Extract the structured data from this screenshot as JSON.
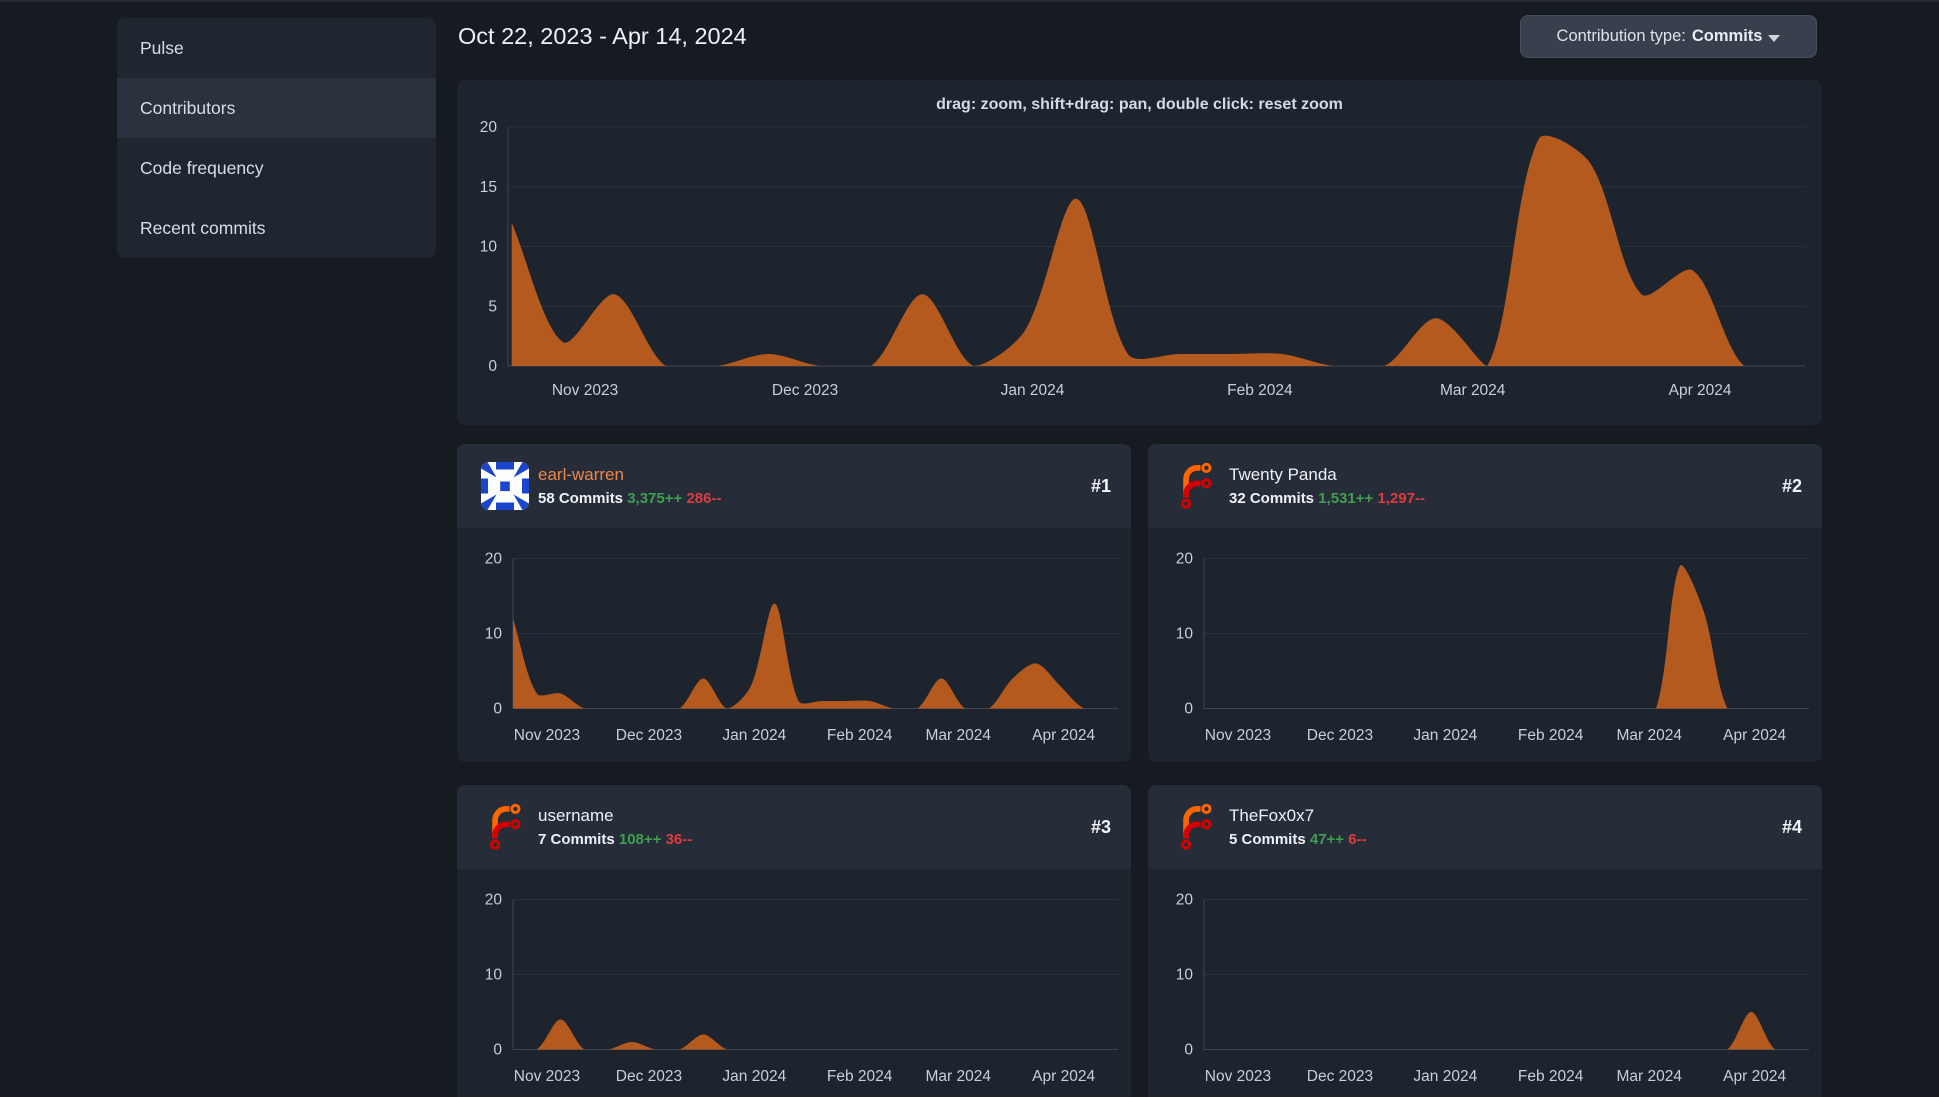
{
  "page": {
    "heading": "Oct 22, 2023 - Apr 14, 2024",
    "contribution_type": {
      "label": "Contribution type:",
      "value": "Commits"
    }
  },
  "sidebar": {
    "items": [
      {
        "label": "Pulse",
        "active": false
      },
      {
        "label": "Contributors",
        "active": true
      },
      {
        "label": "Code frequency",
        "active": false
      },
      {
        "label": "Recent commits",
        "active": false
      }
    ]
  },
  "contributors": [
    {
      "rank": "#1",
      "name": "earl-warren",
      "name_is_link": true,
      "avatar": "identicon-blue",
      "commits_label": "58 Commits",
      "additions": "3,375++",
      "deletions": "286--"
    },
    {
      "rank": "#2",
      "name": "Twenty Panda",
      "name_is_link": false,
      "avatar": "forgejo-logo",
      "commits_label": "32 Commits",
      "additions": "1,531++",
      "deletions": "1,297--"
    },
    {
      "rank": "#3",
      "name": "username",
      "name_is_link": false,
      "avatar": "forgejo-logo",
      "commits_label": "7 Commits",
      "additions": "108++",
      "deletions": "36--"
    },
    {
      "rank": "#4",
      "name": "TheFox0x7",
      "name_is_link": false,
      "avatar": "forgejo-logo",
      "commits_label": "5 Commits",
      "additions": "47++",
      "deletions": "6--"
    }
  ],
  "chart_data": {
    "type": "area",
    "unit": "commits per week",
    "interpolation": "cardinal-spline tension 0.3",
    "grid": "horizontal only",
    "legend_position": "none",
    "weeks": [
      "2023-10-22",
      "2023-10-29",
      "2023-11-05",
      "2023-11-12",
      "2023-11-19",
      "2023-11-26",
      "2023-12-03",
      "2023-12-10",
      "2023-12-17",
      "2023-12-24",
      "2023-12-31",
      "2024-01-07",
      "2024-01-14",
      "2024-01-21",
      "2024-01-28",
      "2024-02-04",
      "2024-02-11",
      "2024-02-18",
      "2024-02-25",
      "2024-03-03",
      "2024-03-10",
      "2024-03-17",
      "2024-03-24",
      "2024-03-31",
      "2024-04-07",
      "2024-04-14"
    ],
    "x_tick_labels": [
      "Nov 2023",
      "Dec 2023",
      "Jan 2024",
      "Feb 2024",
      "Mar 2024",
      "Apr 2024"
    ],
    "x_tick_days_from_start": [
      10,
      40,
      71,
      102,
      131,
      162
    ],
    "x_domain_days_main": [
      -0.5,
      176.3
    ],
    "x_domain_days_cards": [
      0,
      178
    ],
    "main": {
      "title": "drag: zoom, shift+drag: pan, double click: reset zoom",
      "ylim": [
        0,
        20
      ],
      "y_ticks": [
        0,
        5,
        10,
        15,
        20
      ],
      "values": [
        12,
        2,
        6,
        0,
        0,
        1,
        0,
        0,
        6,
        0,
        3,
        14,
        1,
        1,
        1,
        1,
        0,
        0,
        4,
        0,
        19,
        17,
        6,
        8,
        0,
        0
      ]
    },
    "series": [
      {
        "name": "earl-warren",
        "ylim": [
          0,
          20
        ],
        "y_ticks": [
          0,
          10,
          20
        ],
        "values": [
          12,
          2,
          2,
          0,
          0,
          0,
          0,
          0,
          4,
          0,
          3,
          14,
          1,
          1,
          1,
          1,
          0,
          0,
          4,
          0,
          0,
          4,
          6,
          3,
          0,
          0
        ]
      },
      {
        "name": "Twenty Panda",
        "ylim": [
          0,
          20
        ],
        "y_ticks": [
          0,
          10,
          20
        ],
        "values": [
          0,
          0,
          0,
          0,
          0,
          0,
          0,
          0,
          0,
          0,
          0,
          0,
          0,
          0,
          0,
          0,
          0,
          0,
          0,
          0,
          19,
          13,
          0,
          0,
          0,
          0
        ]
      },
      {
        "name": "username",
        "ylim": [
          0,
          20
        ],
        "y_ticks": [
          0,
          10,
          20
        ],
        "values": [
          0,
          0,
          4,
          0,
          0,
          1,
          0,
          0,
          2,
          0,
          0,
          0,
          0,
          0,
          0,
          0,
          0,
          0,
          0,
          0,
          0,
          0,
          0,
          0,
          0,
          0
        ]
      },
      {
        "name": "TheFox0x7",
        "ylim": [
          0,
          20
        ],
        "y_ticks": [
          0,
          10,
          20
        ],
        "values": [
          0,
          0,
          0,
          0,
          0,
          0,
          0,
          0,
          0,
          0,
          0,
          0,
          0,
          0,
          0,
          0,
          0,
          0,
          0,
          0,
          0,
          0,
          0,
          5,
          0,
          0
        ]
      }
    ],
    "colors": {
      "area_fill": "#b55a1f",
      "area_line": "#c2611e",
      "grid_line": "#2a313b",
      "axis_border": "#3e4652",
      "tick_text": "#c7cfda",
      "title_text": "#d3dae3"
    }
  },
  "theme_colors": {
    "page_bg": "#161b22",
    "card_bg": "#1d242e",
    "card_header_bg": "#262d38",
    "sidebar_bg": "#1f2630",
    "sidebar_active_bg": "#2a323d",
    "button_bg": "#37404c",
    "link_orange": "#ee8649",
    "additions_green": "#3f9e4f",
    "deletions_red": "#dc3d3c",
    "identicon_blue": "#2b52d6",
    "logo_orange": "#ff6600",
    "logo_red": "#d40000"
  }
}
